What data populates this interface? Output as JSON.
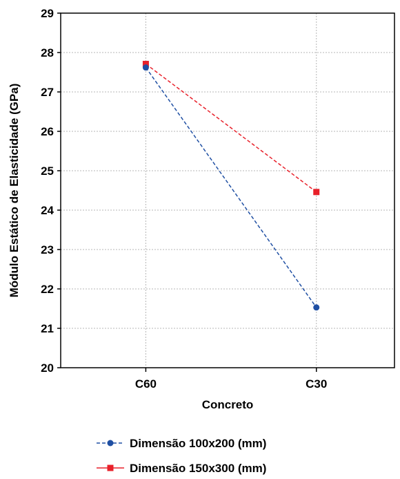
{
  "chart_data": {
    "type": "line",
    "title": "",
    "xlabel": "Concreto",
    "ylabel": "Módulo Estático de Elasticidade (GPa)",
    "categories": [
      "C60",
      "C30"
    ],
    "ylim": [
      20,
      29
    ],
    "yticks": [
      "20",
      "21",
      "22",
      "23",
      "24",
      "25",
      "26",
      "27",
      "28",
      "29"
    ],
    "grid": true,
    "legend_position": "bottom",
    "series": [
      {
        "name": "Dimensão 100x200 (mm)",
        "values": [
          27.62,
          21.53
        ],
        "color": "#1f4fa3",
        "marker": "circle",
        "line_style": "dashed"
      },
      {
        "name": "Dimensão 150x300 (mm)",
        "values": [
          27.71,
          24.46
        ],
        "color": "#e8202a",
        "marker": "square",
        "line_style": "dashed"
      }
    ]
  }
}
